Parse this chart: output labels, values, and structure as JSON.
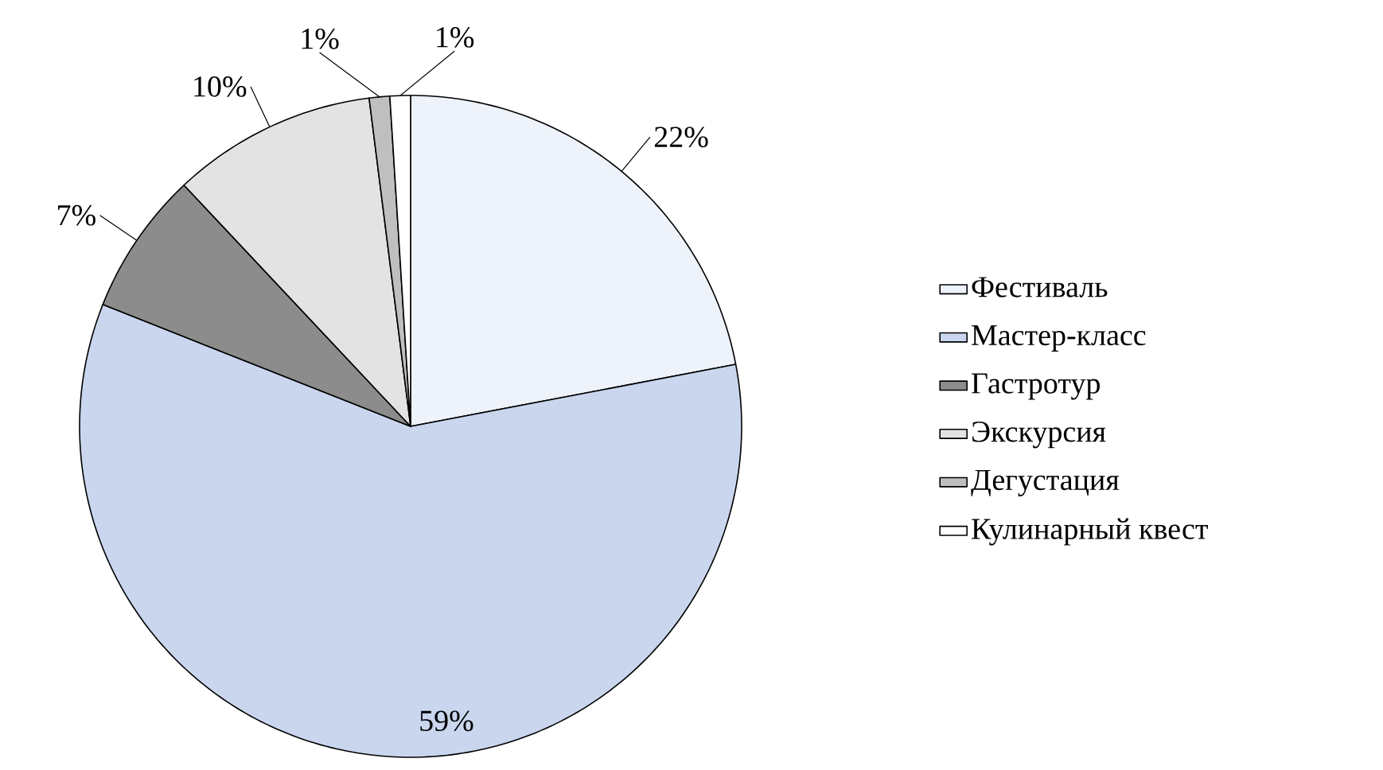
{
  "chart_data": {
    "type": "pie",
    "categories": [
      "Фестиваль",
      "Мастер-класс",
      "Гастротур",
      "Экскурсия",
      "Дегустация",
      "Кулинарный квест"
    ],
    "values": [
      22,
      59,
      7,
      10,
      1,
      1
    ],
    "value_labels": [
      "22%",
      "59%",
      "7%",
      "10%",
      "1%",
      "1%"
    ],
    "colors": [
      "#eef2fa",
      "#c9d6ee",
      "#8c8c8c",
      "#e3e3e3",
      "#bfbfbf",
      "#ffffff"
    ],
    "legend": "right"
  }
}
